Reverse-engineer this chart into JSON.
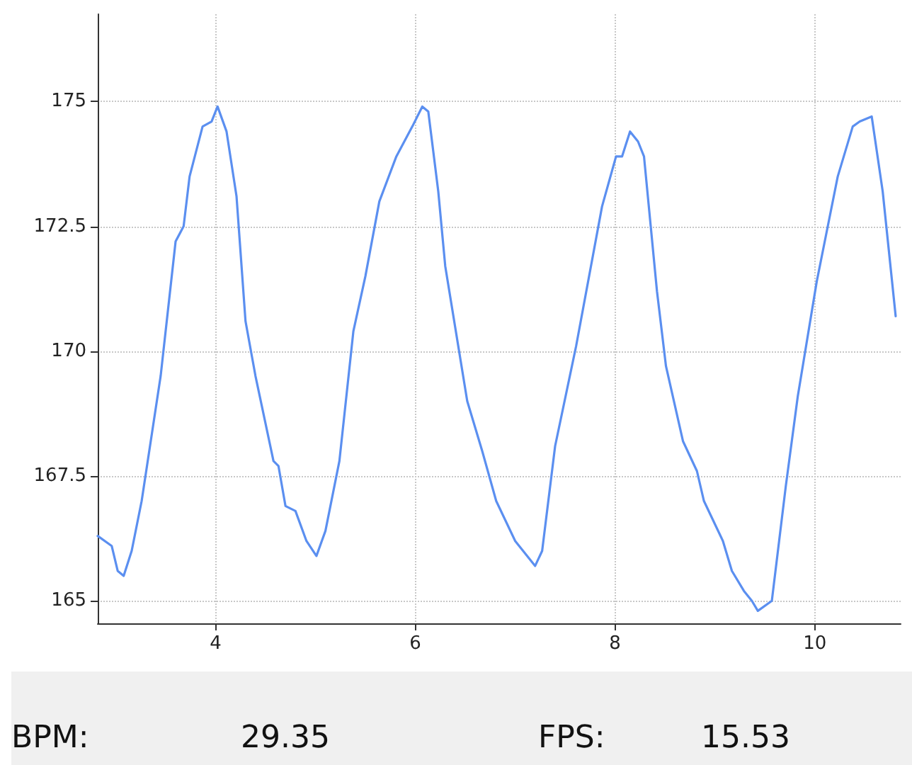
{
  "chart_data": {
    "type": "line",
    "x": [
      2.82,
      2.96,
      3.02,
      3.08,
      3.16,
      3.26,
      3.45,
      3.6,
      3.68,
      3.74,
      3.87,
      3.96,
      4.02,
      4.11,
      4.21,
      4.3,
      4.4,
      4.58,
      4.63,
      4.7,
      4.8,
      4.91,
      5.01,
      5.1,
      5.24,
      5.38,
      5.5,
      5.64,
      5.81,
      5.97,
      6.07,
      6.13,
      6.23,
      6.3,
      6.52,
      6.67,
      6.81,
      7.0,
      7.2,
      7.27,
      7.4,
      7.61,
      7.87,
      8.01,
      8.07,
      8.15,
      8.23,
      8.29,
      8.42,
      8.51,
      8.68,
      8.82,
      8.89,
      9.08,
      9.17,
      9.29,
      9.37,
      9.43,
      9.57,
      9.71,
      9.83,
      10.02,
      10.09,
      10.23,
      10.38,
      10.45,
      10.57,
      10.68,
      10.81
    ],
    "series": [
      {
        "color": "#5b8ff0",
        "values": [
          166.3,
          166.1,
          165.6,
          165.5,
          166.0,
          167.0,
          169.5,
          172.2,
          172.5,
          173.5,
          174.5,
          174.6,
          174.9,
          174.4,
          173.1,
          170.6,
          169.5,
          167.8,
          167.7,
          166.9,
          166.8,
          166.2,
          165.9,
          166.4,
          167.8,
          170.4,
          171.5,
          173.0,
          173.9,
          174.5,
          174.9,
          174.8,
          173.2,
          171.7,
          169.0,
          168.0,
          167.0,
          166.2,
          165.7,
          166.0,
          168.1,
          170.1,
          172.9,
          173.9,
          173.9,
          174.4,
          174.2,
          173.9,
          171.2,
          169.7,
          168.2,
          167.6,
          167.0,
          166.2,
          165.6,
          165.2,
          165.0,
          164.8,
          165.0,
          167.3,
          169.1,
          171.4,
          172.1,
          173.5,
          174.5,
          174.6,
          174.7,
          173.2,
          170.7
        ]
      }
    ],
    "xlim": [
      2.82,
      10.86
    ],
    "xticks": [
      4,
      6,
      8,
      10
    ],
    "ylim": [
      164.55,
      176.75
    ],
    "yticks": [
      165,
      167.5,
      170,
      172.5,
      175
    ],
    "grid": true,
    "marker": "none",
    "line_style": "solid",
    "annotations": [
      "BPM:",
      "29.35",
      "FPS:",
      "15.53"
    ]
  }
}
